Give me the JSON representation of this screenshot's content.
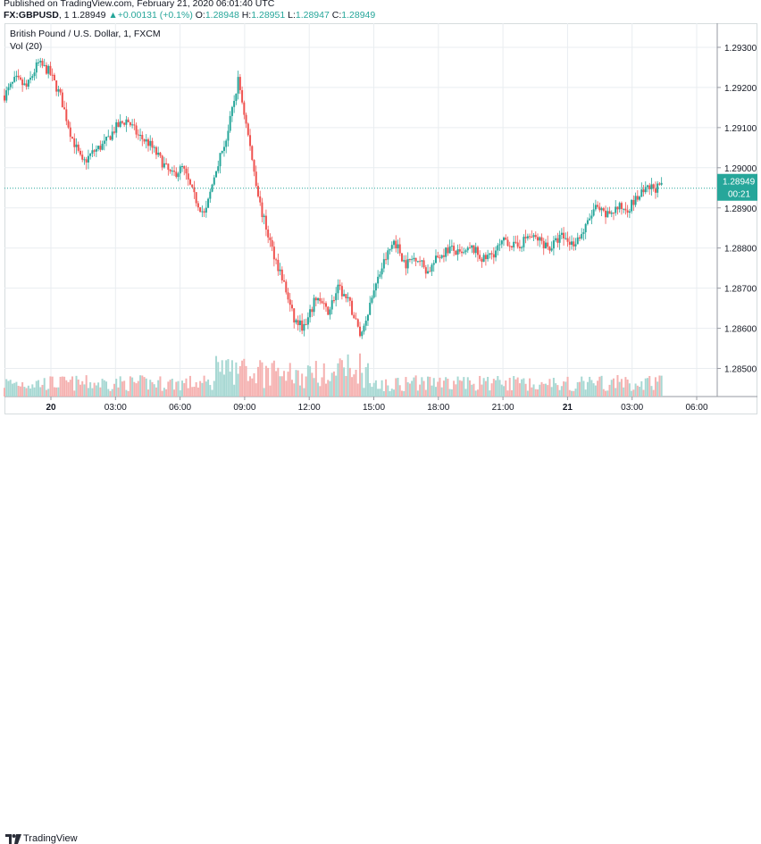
{
  "header": {
    "published": "Published on TradingView.com, February 21, 2020 06:01:40 UTC",
    "symbol": "FX:GBPUSD",
    "interval": "1",
    "last": "1.28949",
    "arrow": "▲",
    "change": "+0.00131 (+0.1%)",
    "o_label": "O:",
    "o_value": "1.28948",
    "h_label": "H:",
    "h_value": "1.28951",
    "l_label": "L:",
    "l_value": "1.28947",
    "c_label": "C:",
    "c_value": "1.28949"
  },
  "legend": {
    "title": "British Pound / U.S. Dollar, 1, FXCM",
    "volume": "Vol (20)"
  },
  "price_tag": {
    "value": "1.28949",
    "countdown": "00:21"
  },
  "footer": {
    "brand": "TradingView"
  },
  "colors": {
    "up": "#26a69a",
    "down": "#ef5350",
    "vol_up": "#a7d8d3",
    "vol_down": "#f5b1b0",
    "grid": "#e9edf0"
  },
  "chart_data": {
    "type": "candlestick",
    "title": "British Pound / U.S. Dollar, 1, FXCM",
    "y_ticks": [
      "1.29300",
      "1.29200",
      "1.29100",
      "1.29000",
      "1.28900",
      "1.28800",
      "1.28700",
      "1.28600",
      "1.28500"
    ],
    "x_ticks": [
      "20",
      "03:00",
      "06:00",
      "09:00",
      "12:00",
      "15:00",
      "18:00",
      "21:00",
      "21",
      "03:00",
      "06:00"
    ],
    "ylim": [
      1.2843,
      1.2936
    ],
    "last_price": 1.28949,
    "price_path": [
      [
        0,
        1.2918
      ],
      [
        2,
        1.2922
      ],
      [
        4,
        1.292
      ],
      [
        6,
        1.2926
      ],
      [
        8,
        1.2924
      ],
      [
        10,
        1.2918
      ],
      [
        12,
        1.2908
      ],
      [
        14,
        1.2901
      ],
      [
        16,
        1.2904
      ],
      [
        18,
        1.2906
      ],
      [
        20,
        1.291
      ],
      [
        22,
        1.2912
      ],
      [
        24,
        1.2908
      ],
      [
        26,
        1.2906
      ],
      [
        28,
        1.2902
      ],
      [
        30,
        1.2898
      ],
      [
        32,
        1.29
      ],
      [
        34,
        1.2893
      ],
      [
        36,
        1.2888
      ],
      [
        38,
        1.29
      ],
      [
        40,
        1.2908
      ],
      [
        42,
        1.2922
      ],
      [
        44,
        1.2906
      ],
      [
        46,
        1.289
      ],
      [
        48,
        1.288
      ],
      [
        50,
        1.2872
      ],
      [
        52,
        1.2862
      ],
      [
        54,
        1.286
      ],
      [
        56,
        1.2868
      ],
      [
        58,
        1.2864
      ],
      [
        60,
        1.287
      ],
      [
        62,
        1.2866
      ],
      [
        64,
        1.2858
      ],
      [
        66,
        1.2868
      ],
      [
        68,
        1.2876
      ],
      [
        70,
        1.2882
      ],
      [
        72,
        1.2876
      ],
      [
        74,
        1.2878
      ],
      [
        76,
        1.2874
      ],
      [
        78,
        1.2878
      ],
      [
        80,
        1.288
      ],
      [
        82,
        1.2878
      ],
      [
        84,
        1.288
      ],
      [
        86,
        1.2877
      ],
      [
        88,
        1.2879
      ],
      [
        90,
        1.2882
      ],
      [
        92,
        1.288
      ],
      [
        94,
        1.2883
      ],
      [
        96,
        1.2882
      ],
      [
        98,
        1.288
      ],
      [
        100,
        1.2883
      ],
      [
        102,
        1.2881
      ],
      [
        104,
        1.2884
      ],
      [
        106,
        1.289
      ],
      [
        108,
        1.2888
      ],
      [
        110,
        1.289
      ],
      [
        112,
        1.289
      ],
      [
        114,
        1.2893
      ],
      [
        116,
        1.2895
      ],
      [
        118,
        1.2895
      ]
    ]
  }
}
